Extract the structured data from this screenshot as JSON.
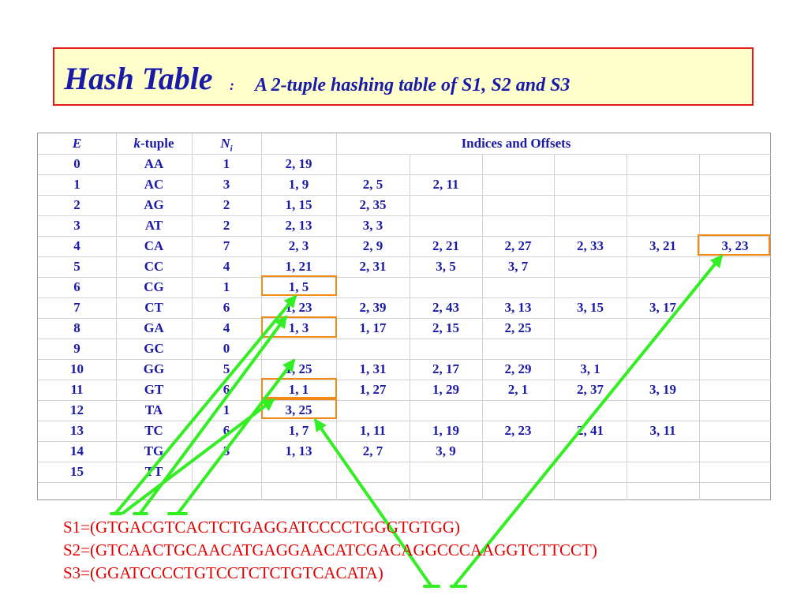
{
  "title": {
    "main": "Hash Table",
    "colon": ":",
    "subtitle": "A 2-tuple hashing table of S1, S2 and S3"
  },
  "table": {
    "headers": {
      "e": "E",
      "k_italic": "k",
      "k_rest": "-tuple",
      "n_main": "N",
      "n_sub": "i",
      "indices": "Indices and Offsets"
    },
    "rows": [
      {
        "e": "0",
        "tuple": "AA",
        "n": "1",
        "offsets": [
          "2, 19"
        ]
      },
      {
        "e": "1",
        "tuple": "AC",
        "n": "3",
        "offsets": [
          "1,  9",
          "2,  5",
          "2, 11"
        ]
      },
      {
        "e": "2",
        "tuple": "AG",
        "n": "2",
        "offsets": [
          "1, 15",
          "2, 35"
        ]
      },
      {
        "e": "3",
        "tuple": "AT",
        "n": "2",
        "offsets": [
          "2, 13",
          "3,  3"
        ]
      },
      {
        "e": "4",
        "tuple": "CA",
        "n": "7",
        "offsets": [
          "2,  3",
          "2,  9",
          "2, 21",
          "2, 27",
          "2, 33",
          "3, 21",
          "3, 23"
        ]
      },
      {
        "e": "5",
        "tuple": "CC",
        "n": "4",
        "offsets": [
          "1, 21",
          "2, 31",
          "3,  5",
          "3,  7"
        ]
      },
      {
        "e": "6",
        "tuple": "CG",
        "n": "1",
        "offsets": [
          "1,  5"
        ]
      },
      {
        "e": "7",
        "tuple": "CT",
        "n": "6",
        "offsets": [
          "1, 23",
          "2, 39",
          "2, 43",
          "3, 13",
          "3, 15",
          "3, 17"
        ]
      },
      {
        "e": "8",
        "tuple": "GA",
        "n": "4",
        "offsets": [
          "1,  3",
          "1, 17",
          "2, 15",
          "2, 25"
        ]
      },
      {
        "e": "9",
        "tuple": "GC",
        "n": "0",
        "offsets": []
      },
      {
        "e": "10",
        "tuple": "GG",
        "n": "5",
        "offsets": [
          "1, 25",
          "1, 31",
          "2, 17",
          "2, 29",
          "3,  1"
        ]
      },
      {
        "e": "11",
        "tuple": "GT",
        "n": "6",
        "offsets": [
          "1,  1",
          "1, 27",
          "1, 29",
          "2,  1",
          "2, 37",
          "3, 19"
        ]
      },
      {
        "e": "12",
        "tuple": "TA",
        "n": "1",
        "offsets": [
          "3, 25"
        ]
      },
      {
        "e": "13",
        "tuple": "TC",
        "n": "6",
        "offsets": [
          "1,  7",
          "1, 11",
          "1, 19",
          "2, 23",
          "2, 41",
          "3, 11"
        ]
      },
      {
        "e": "14",
        "tuple": "TG",
        "n": "3",
        "offsets": [
          "1, 13",
          "2,  7",
          "3,  9"
        ]
      },
      {
        "e": "15",
        "tuple": "TT",
        "n": "",
        "offsets": []
      }
    ]
  },
  "sequences": {
    "s1": "S1=(GTGACGTCACTCTGAGGATCCCCTGGGTGTGG)",
    "s2": "S2=(GTCAACTGCAACATGAGGAACATCGACAGGCCCAAGGTCTTCCT)",
    "s3": "S3=(GGATCCCCTGTCCTCTCTGTCACATA)"
  },
  "colors": {
    "title_text": "#1a1aa8",
    "title_background": "#ffffcc",
    "title_border": "#e31b1b",
    "table_text": "#1a1aa8",
    "highlight_box": "#f28a1a",
    "arrow": "#33ee22",
    "sequence_text": "#e30000"
  }
}
